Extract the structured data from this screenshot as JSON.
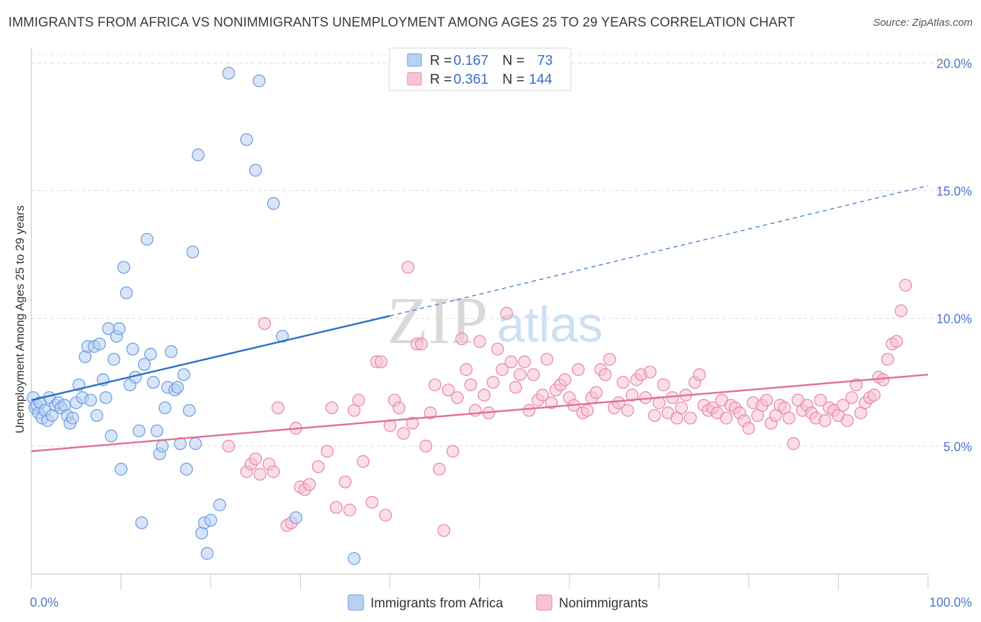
{
  "title": "IMMIGRANTS FROM AFRICA VS NONIMMIGRANTS UNEMPLOYMENT AMONG AGES 25 TO 29 YEARS CORRELATION CHART",
  "source": "Source: ZipAtlas.com",
  "watermark": {
    "zip": "ZIP",
    "atlas": "atlas"
  },
  "colors": {
    "blue": "#6e9fe0",
    "blue_fill": "#b8d0f2",
    "pink": "#e88aa8",
    "pink_fill": "#f7c3d3",
    "blue_line": "#2c6fcc",
    "pink_line": "#e0709a",
    "tick": "#4a78c2"
  },
  "chart_data": {
    "type": "scatter",
    "title": "IMMIGRANTS FROM AFRICA VS NONIMMIGRANTS UNEMPLOYMENT AMONG AGES 25 TO 29 YEARS CORRELATION CHART",
    "xlabel": "",
    "ylabel": "Unemployment Among Ages 25 to 29 years",
    "xlim": [
      0,
      100
    ],
    "ylim": [
      0,
      20.5
    ],
    "x_tick_labels": [
      "0.0%",
      "100.0%"
    ],
    "y_ticks": [
      5,
      10,
      15,
      20
    ],
    "y_tick_labels": [
      "5.0%",
      "10.0%",
      "15.0%",
      "20.0%"
    ],
    "grid": "horizontal dashed",
    "legend": {
      "placement": "top-center",
      "entries": [
        {
          "r_label": "R =",
          "r_value": "0.167",
          "n_label": "N =",
          "n_value": "73"
        },
        {
          "r_label": "R =",
          "r_value": "0.361",
          "n_label": "N =",
          "n_value": "144"
        }
      ]
    },
    "series": [
      {
        "name": "Immigrants from Africa",
        "trend": {
          "x": [
            0,
            40,
            100
          ],
          "y": [
            6.8,
            10.1,
            15.2
          ],
          "solid_until": 40
        },
        "points": [
          [
            0.2,
            6.9
          ],
          [
            0.4,
            6.5
          ],
          [
            0.6,
            6.6
          ],
          [
            0.8,
            6.3
          ],
          [
            1.0,
            6.7
          ],
          [
            1.2,
            6.1
          ],
          [
            1.5,
            6.4
          ],
          [
            1.8,
            6.0
          ],
          [
            2.0,
            6.9
          ],
          [
            2.3,
            6.2
          ],
          [
            2.7,
            6.6
          ],
          [
            3.0,
            6.7
          ],
          [
            3.3,
            6.5
          ],
          [
            3.7,
            6.6
          ],
          [
            4.0,
            6.2
          ],
          [
            4.3,
            5.9
          ],
          [
            4.6,
            6.1
          ],
          [
            5.0,
            6.7
          ],
          [
            5.3,
            7.4
          ],
          [
            5.7,
            6.9
          ],
          [
            6.0,
            8.5
          ],
          [
            6.3,
            8.9
          ],
          [
            6.6,
            6.8
          ],
          [
            7.0,
            8.9
          ],
          [
            7.3,
            6.2
          ],
          [
            7.6,
            9.0
          ],
          [
            8.0,
            7.6
          ],
          [
            8.3,
            6.9
          ],
          [
            8.6,
            9.6
          ],
          [
            8.9,
            5.4
          ],
          [
            9.2,
            8.4
          ],
          [
            9.5,
            9.3
          ],
          [
            9.8,
            9.6
          ],
          [
            10.0,
            4.1
          ],
          [
            10.3,
            12.0
          ],
          [
            10.6,
            11.0
          ],
          [
            11.0,
            7.4
          ],
          [
            11.3,
            8.8
          ],
          [
            11.6,
            7.7
          ],
          [
            12.0,
            5.6
          ],
          [
            12.3,
            2.0
          ],
          [
            12.6,
            8.2
          ],
          [
            12.9,
            13.1
          ],
          [
            13.3,
            8.6
          ],
          [
            13.6,
            7.5
          ],
          [
            14.0,
            5.6
          ],
          [
            14.3,
            4.7
          ],
          [
            14.6,
            5.0
          ],
          [
            14.9,
            6.5
          ],
          [
            15.2,
            7.3
          ],
          [
            15.6,
            8.7
          ],
          [
            16.0,
            7.2
          ],
          [
            16.3,
            7.3
          ],
          [
            16.6,
            5.1
          ],
          [
            17.0,
            7.8
          ],
          [
            17.3,
            4.1
          ],
          [
            17.6,
            6.4
          ],
          [
            18.0,
            12.6
          ],
          [
            18.3,
            5.1
          ],
          [
            18.6,
            16.4
          ],
          [
            19.0,
            1.6
          ],
          [
            19.3,
            2.0
          ],
          [
            19.6,
            0.8
          ],
          [
            20.0,
            2.1
          ],
          [
            21.0,
            2.7
          ],
          [
            22.0,
            19.6
          ],
          [
            24.0,
            17.0
          ],
          [
            25.0,
            15.8
          ],
          [
            25.4,
            19.3
          ],
          [
            27.0,
            14.5
          ],
          [
            28.0,
            9.3
          ],
          [
            29.5,
            2.2
          ],
          [
            36.0,
            0.6
          ]
        ]
      },
      {
        "name": "Nonimmigrants",
        "trend": {
          "x": [
            0,
            100
          ],
          "y": [
            4.8,
            7.8
          ]
        },
        "points": [
          [
            22.0,
            5.0
          ],
          [
            24.0,
            4.0
          ],
          [
            24.5,
            4.3
          ],
          [
            25.0,
            4.5
          ],
          [
            25.5,
            3.9
          ],
          [
            26.0,
            9.8
          ],
          [
            26.5,
            4.3
          ],
          [
            27.0,
            4.0
          ],
          [
            27.5,
            6.5
          ],
          [
            28.5,
            1.9
          ],
          [
            29.0,
            2.0
          ],
          [
            29.5,
            5.7
          ],
          [
            30.0,
            3.4
          ],
          [
            30.5,
            3.3
          ],
          [
            31.0,
            3.5
          ],
          [
            32.0,
            4.2
          ],
          [
            33.0,
            4.8
          ],
          [
            33.5,
            6.5
          ],
          [
            34.0,
            2.6
          ],
          [
            35.0,
            3.6
          ],
          [
            35.5,
            2.5
          ],
          [
            36.0,
            6.4
          ],
          [
            36.5,
            6.8
          ],
          [
            37.0,
            4.4
          ],
          [
            38.0,
            2.8
          ],
          [
            38.5,
            8.3
          ],
          [
            39.0,
            8.3
          ],
          [
            39.5,
            2.3
          ],
          [
            40.0,
            5.8
          ],
          [
            40.5,
            6.8
          ],
          [
            41.0,
            6.5
          ],
          [
            41.5,
            5.5
          ],
          [
            42.0,
            12.0
          ],
          [
            42.5,
            5.9
          ],
          [
            43.0,
            9.0
          ],
          [
            43.5,
            9.0
          ],
          [
            44.0,
            5.0
          ],
          [
            44.5,
            6.3
          ],
          [
            45.0,
            7.4
          ],
          [
            45.5,
            4.1
          ],
          [
            46.0,
            1.7
          ],
          [
            46.5,
            7.2
          ],
          [
            47.0,
            4.8
          ],
          [
            47.5,
            6.9
          ],
          [
            48.0,
            9.2
          ],
          [
            48.5,
            8.0
          ],
          [
            49.0,
            7.4
          ],
          [
            49.5,
            6.4
          ],
          [
            50.0,
            9.1
          ],
          [
            50.5,
            7.0
          ],
          [
            51.0,
            6.3
          ],
          [
            51.5,
            7.5
          ],
          [
            52.0,
            8.8
          ],
          [
            52.5,
            8.0
          ],
          [
            53.0,
            10.2
          ],
          [
            53.5,
            8.3
          ],
          [
            54.0,
            7.3
          ],
          [
            54.5,
            7.8
          ],
          [
            55.0,
            8.3
          ],
          [
            55.5,
            6.4
          ],
          [
            56.0,
            7.8
          ],
          [
            56.5,
            6.8
          ],
          [
            57.0,
            7.0
          ],
          [
            57.5,
            8.4
          ],
          [
            58.0,
            6.7
          ],
          [
            58.5,
            7.2
          ],
          [
            59.0,
            7.4
          ],
          [
            59.5,
            7.6
          ],
          [
            60.0,
            6.9
          ],
          [
            60.5,
            6.6
          ],
          [
            61.0,
            8.0
          ],
          [
            61.5,
            6.3
          ],
          [
            62.0,
            6.4
          ],
          [
            62.5,
            6.9
          ],
          [
            63.0,
            7.1
          ],
          [
            63.5,
            8.0
          ],
          [
            64.0,
            7.8
          ],
          [
            64.5,
            8.4
          ],
          [
            65.0,
            6.5
          ],
          [
            65.5,
            6.7
          ],
          [
            66.0,
            7.5
          ],
          [
            66.5,
            6.4
          ],
          [
            67.0,
            7.0
          ],
          [
            67.5,
            7.6
          ],
          [
            68.0,
            7.8
          ],
          [
            68.5,
            6.9
          ],
          [
            69.0,
            7.9
          ],
          [
            69.5,
            6.2
          ],
          [
            70.0,
            6.7
          ],
          [
            70.5,
            7.4
          ],
          [
            71.0,
            6.3
          ],
          [
            71.5,
            6.9
          ],
          [
            72.0,
            6.1
          ],
          [
            72.5,
            6.5
          ],
          [
            73.0,
            7.0
          ],
          [
            73.5,
            6.1
          ],
          [
            74.0,
            7.5
          ],
          [
            74.5,
            7.8
          ],
          [
            75.0,
            6.6
          ],
          [
            75.5,
            6.4
          ],
          [
            76.0,
            6.5
          ],
          [
            76.5,
            6.3
          ],
          [
            77.0,
            6.8
          ],
          [
            77.5,
            6.1
          ],
          [
            78.0,
            6.6
          ],
          [
            78.5,
            6.5
          ],
          [
            79.0,
            6.3
          ],
          [
            79.5,
            6.0
          ],
          [
            80.0,
            5.7
          ],
          [
            80.5,
            6.7
          ],
          [
            81.0,
            6.2
          ],
          [
            81.5,
            6.6
          ],
          [
            82.0,
            6.8
          ],
          [
            82.5,
            5.9
          ],
          [
            83.0,
            6.2
          ],
          [
            83.5,
            6.6
          ],
          [
            84.0,
            6.5
          ],
          [
            84.5,
            6.1
          ],
          [
            85.0,
            5.1
          ],
          [
            85.5,
            6.8
          ],
          [
            86.0,
            6.4
          ],
          [
            86.5,
            6.6
          ],
          [
            87.0,
            6.3
          ],
          [
            87.5,
            6.1
          ],
          [
            88.0,
            6.8
          ],
          [
            88.5,
            6.0
          ],
          [
            89.0,
            6.5
          ],
          [
            89.5,
            6.4
          ],
          [
            90.0,
            6.2
          ],
          [
            90.5,
            6.6
          ],
          [
            91.0,
            6.0
          ],
          [
            91.5,
            6.9
          ],
          [
            92.0,
            7.4
          ],
          [
            92.5,
            6.3
          ],
          [
            93.0,
            6.7
          ],
          [
            93.5,
            6.9
          ],
          [
            94.0,
            7.0
          ],
          [
            94.5,
            7.7
          ],
          [
            95.0,
            7.6
          ],
          [
            95.5,
            8.4
          ],
          [
            96.0,
            9.0
          ],
          [
            96.5,
            9.1
          ],
          [
            97.0,
            10.3
          ],
          [
            97.5,
            11.3
          ]
        ]
      }
    ]
  }
}
